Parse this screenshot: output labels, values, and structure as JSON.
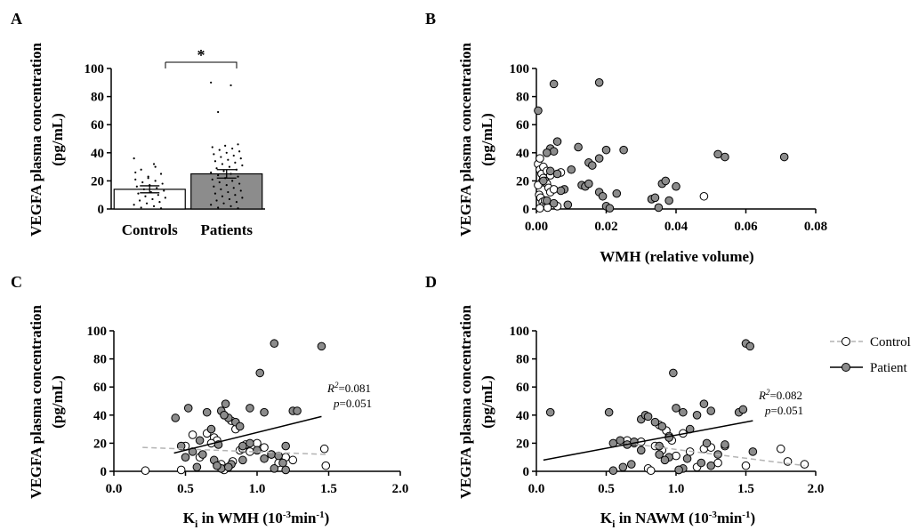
{
  "panels": {
    "A": "A",
    "B": "B",
    "C": "C",
    "D": "D"
  },
  "ylabel": {
    "line1": "VEGFA plasma concentration",
    "line2": "(pg/mL)"
  },
  "significance": "*",
  "legend": {
    "control": "Control",
    "patient": "Patient"
  },
  "annotations": {
    "C": {
      "r2_symbol": "R",
      "r2_sup": "2",
      "r2_value": "=0.081",
      "p_symbol": "p",
      "p_value": "=0.051"
    },
    "D": {
      "r2_symbol": "R",
      "r2_sup": "2",
      "r2_value": "=0.082",
      "p_symbol": "p",
      "p_value": "=0.051"
    }
  },
  "xlabels": {
    "B": "WMH (relative volume)",
    "C_main": "K",
    "C_sub": "i",
    "C_mid": " in WMH (10",
    "C_sup": "-3",
    "C_end": "min",
    "C_sup2": "-1",
    "C_close": ")",
    "D_main": "K",
    "D_sub": "i",
    "D_mid": " in NAWM (10",
    "D_sup": "-3",
    "D_end": "min",
    "D_sup2": "-1",
    "D_close": ")"
  },
  "colors": {
    "control_fill": "#ffffff",
    "patient_fill": "#8c8c8c",
    "marker_edge": "#000000",
    "control_line": "#b4b4b4",
    "patient_line": "#000000"
  },
  "chart_data": [
    {
      "panel": "A",
      "type": "bar",
      "categories": [
        "Controls",
        "Patients"
      ],
      "values": [
        14,
        25
      ],
      "error": [
        2.5,
        3
      ],
      "ylim": [
        0,
        100
      ],
      "yticks": [
        0,
        20,
        40,
        60,
        80,
        100
      ],
      "ylabel": "VEGFA plasma concentration (pg/mL)",
      "significance": "*",
      "points": {
        "Controls": [
          36,
          32,
          28,
          25,
          23,
          21,
          20,
          19,
          18,
          17,
          16,
          15,
          14,
          13,
          12,
          11,
          10,
          9,
          8,
          7,
          6,
          5,
          4,
          3,
          2,
          1,
          0.5,
          22,
          26,
          30
        ],
        "Patients": [
          90,
          88,
          69,
          46,
          45,
          44,
          43,
          42,
          41,
          40,
          39,
          38,
          37,
          36,
          35,
          34,
          33,
          32,
          31,
          30,
          29,
          28,
          27,
          26,
          25,
          24,
          23,
          22,
          21,
          20,
          19,
          18,
          17,
          16,
          15,
          14,
          13,
          12,
          11,
          10,
          9,
          8,
          7,
          6,
          5,
          4,
          3,
          2,
          1,
          0.5
        ]
      }
    },
    {
      "panel": "B",
      "type": "scatter",
      "xlabel": "WMH (relative volume)",
      "ylabel": "VEGFA plasma concentration (pg/mL)",
      "xlim": [
        0,
        0.08
      ],
      "ylim": [
        0,
        100
      ],
      "xticks": [
        "0.00",
        "0.02",
        "0.04",
        "0.06",
        "0.08"
      ],
      "yticks": [
        0,
        20,
        40,
        60,
        80,
        100
      ],
      "series": [
        {
          "group": "control",
          "x": [
            0.0005,
            0.001,
            0.0015,
            0.002,
            0.0025,
            0.003,
            0.0035,
            0.004,
            0.0008,
            0.0012,
            0.0018,
            0.0022,
            0.0028,
            0.0032,
            0.001,
            0.002,
            0.003,
            0.004,
            0.005,
            0.006,
            0.0015,
            0.0025,
            0.007,
            0.048,
            0.0005,
            0.001
          ],
          "y": [
            32,
            28,
            25,
            22,
            20,
            18,
            15,
            12,
            10,
            8,
            5,
            3,
            2,
            1,
            36,
            30,
            27,
            24,
            14,
            2,
            19,
            6,
            26,
            9,
            17,
            0.5
          ]
        },
        {
          "group": "patient",
          "x": [
            0.0005,
            0.005,
            0.018,
            0.006,
            0.004,
            0.005,
            0.012,
            0.02,
            0.025,
            0.015,
            0.018,
            0.016,
            0.052,
            0.054,
            0.071,
            0.01,
            0.008,
            0.013,
            0.014,
            0.015,
            0.018,
            0.019,
            0.023,
            0.033,
            0.034,
            0.036,
            0.037,
            0.038,
            0.04,
            0.02,
            0.021,
            0.003,
            0.004,
            0.006,
            0.007,
            0.002,
            0.003,
            0.005,
            0.009,
            0.035
          ],
          "y": [
            70,
            89,
            90,
            48,
            43,
            41,
            44,
            42,
            42,
            33,
            36,
            31,
            39,
            37,
            37,
            28,
            14,
            17,
            16,
            18,
            12,
            9,
            11,
            7,
            8,
            18,
            20,
            6,
            16,
            2,
            0.5,
            40,
            27,
            25,
            13,
            20,
            6,
            4,
            3,
            1
          ]
        }
      ]
    },
    {
      "panel": "C",
      "type": "scatter",
      "xlabel": "Ki in WMH (10-3min-1)",
      "ylabel": "VEGFA plasma concentration (pg/mL)",
      "xlim": [
        0,
        2
      ],
      "ylim": [
        0,
        100
      ],
      "xticks": [
        "0.0",
        "0.5",
        "1.0",
        "1.5",
        "2.0"
      ],
      "yticks": [
        0,
        20,
        40,
        60,
        80,
        100
      ],
      "r2": 0.081,
      "p": 0.051,
      "series": [
        {
          "group": "control",
          "x": [
            0.22,
            0.47,
            0.5,
            0.55,
            0.65,
            0.7,
            0.72,
            0.75,
            0.78,
            0.8,
            0.82,
            0.85,
            0.88,
            0.9,
            0.95,
            1.0,
            1.05,
            1.1,
            1.2,
            1.25,
            1.48,
            1.47,
            0.6,
            0.68,
            0.77,
            0.83,
            0.92,
            1.15
          ],
          "y": [
            0.5,
            1,
            18,
            26,
            27,
            24,
            22,
            5,
            2,
            3,
            36,
            30,
            15,
            16,
            14,
            20,
            17,
            12,
            10,
            8,
            4,
            16,
            10,
            20,
            1,
            7,
            19,
            6
          ],
          "trend": {
            "x": [
              0.2,
              1.48
            ],
            "y": [
              17,
              12
            ]
          }
        },
        {
          "group": "patient",
          "x": [
            0.43,
            0.47,
            0.52,
            0.55,
            0.6,
            0.62,
            0.65,
            0.7,
            0.73,
            0.75,
            0.78,
            0.8,
            0.85,
            0.88,
            0.9,
            0.95,
            1.0,
            1.02,
            1.05,
            1.1,
            1.12,
            1.15,
            1.2,
            1.25,
            1.28,
            1.45,
            0.5,
            0.58,
            0.75,
            0.82,
            0.9,
            1.05,
            1.18,
            0.68,
            0.77,
            0.95,
            1.12,
            1.2,
            0.72,
            0.8
          ],
          "y": [
            38,
            18,
            45,
            14,
            22,
            12,
            42,
            8,
            19,
            43,
            48,
            38,
            35,
            32,
            18,
            45,
            15,
            70,
            42,
            12,
            91,
            11,
            18,
            43,
            43,
            89,
            10,
            3,
            2,
            5,
            8,
            9,
            6,
            30,
            40,
            20,
            2,
            1,
            4,
            3
          ],
          "trend": {
            "x": [
              0.42,
              1.45
            ],
            "y": [
              13,
              39
            ]
          }
        }
      ]
    },
    {
      "panel": "D",
      "type": "scatter",
      "xlabel": "Ki in NAWM (10-3min-1)",
      "ylabel": "VEGFA plasma concentration (pg/mL)",
      "xlim": [
        0,
        2
      ],
      "ylim": [
        0,
        100
      ],
      "xticks": [
        "0.0",
        "0.5",
        "1.0",
        "1.5",
        "2.0"
      ],
      "yticks": [
        0,
        20,
        40,
        60,
        80,
        100
      ],
      "r2": 0.082,
      "p": 0.051,
      "series": [
        {
          "group": "control",
          "x": [
            0.65,
            0.7,
            0.75,
            0.8,
            0.85,
            0.88,
            0.9,
            0.93,
            0.95,
            1.0,
            1.05,
            1.1,
            1.15,
            1.2,
            1.25,
            1.3,
            1.35,
            1.5,
            1.75,
            1.8,
            1.92,
            0.82,
            0.97,
            1.02
          ],
          "y": [
            22,
            20,
            21,
            2,
            18,
            33,
            15,
            29,
            25,
            11,
            27,
            14,
            3,
            16,
            17,
            6,
            18,
            4,
            16,
            7,
            5,
            0.5,
            22,
            1
          ],
          "trend": {
            "x": [
              0.65,
              1.92
            ],
            "y": [
              20,
              4
            ]
          }
        },
        {
          "group": "patient",
          "x": [
            0.1,
            0.52,
            0.55,
            0.6,
            0.65,
            0.7,
            0.75,
            0.78,
            0.8,
            0.85,
            0.88,
            0.9,
            0.95,
            0.98,
            1.0,
            1.05,
            1.1,
            1.15,
            1.2,
            1.22,
            1.25,
            1.3,
            1.35,
            1.45,
            1.48,
            1.5,
            1.53,
            1.55,
            0.55,
            0.68,
            0.88,
            0.92,
            1.05,
            1.18,
            0.62,
            0.75,
            0.95,
            1.08,
            1.25,
            1.02
          ],
          "y": [
            42,
            42,
            20,
            22,
            19,
            21,
            37,
            40,
            39,
            35,
            18,
            32,
            10,
            70,
            45,
            42,
            30,
            40,
            48,
            20,
            43,
            12,
            19,
            42,
            44,
            91,
            89,
            14,
            0.5,
            5,
            12,
            8,
            2,
            6,
            3,
            15,
            24,
            9,
            4,
            1
          ],
          "trend": {
            "x": [
              0.05,
              1.55
            ],
            "y": [
              8,
              36
            ]
          }
        }
      ]
    }
  ]
}
